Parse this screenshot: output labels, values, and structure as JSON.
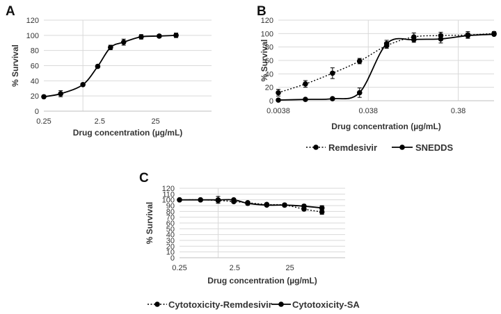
{
  "chart_data": [
    {
      "panel": "A",
      "type": "line",
      "x_scale": "log",
      "xlabel": "Drug concentration (µg/mL)",
      "ylabel": "% Survival",
      "ylim": [
        0,
        120
      ],
      "yticks": [
        0,
        20,
        40,
        60,
        80,
        100,
        120
      ],
      "xticks": [
        {
          "value": 0.25,
          "label": "0.25"
        },
        {
          "value": 2.5,
          "label": "2.5"
        },
        {
          "value": 25,
          "label": "25"
        }
      ],
      "xlim": [
        0.25,
        250
      ],
      "gridlines_x": [
        1.25
      ],
      "legend": [],
      "series": [
        {
          "name": "",
          "style": "solid",
          "x": [
            0.25,
            0.5,
            1.25,
            2.3,
            3.9,
            6.7,
            13.8,
            29,
            58
          ],
          "values": [
            19,
            23,
            35,
            59,
            84,
            91,
            98,
            99,
            100
          ],
          "errors": [
            2,
            4,
            2,
            2,
            3,
            4,
            3,
            2,
            3
          ]
        }
      ]
    },
    {
      "panel": "B",
      "type": "line",
      "x_scale": "log",
      "xlabel": "Drug concentration (µg/mL)",
      "ylabel": "% Survival",
      "ylim": [
        0,
        120
      ],
      "yticks": [
        0,
        20,
        40,
        60,
        80,
        100,
        120
      ],
      "xticks": [
        {
          "value": 0.0038,
          "label": "0.0038"
        },
        {
          "value": 0.038,
          "label": "0.038"
        },
        {
          "value": 0.38,
          "label": "0.38"
        }
      ],
      "xlim": [
        0.0038,
        0.95
      ],
      "gridlines_x": [
        0.038,
        0.38
      ],
      "legend": [
        "Remdesivir",
        "SNEDDS"
      ],
      "legend_position": "bottom",
      "series": [
        {
          "name": "Remdesivir",
          "style": "dotted",
          "x": [
            0.0038,
            0.0076,
            0.0152,
            0.0304,
            0.0608,
            0.122,
            0.243,
            0.486,
            0.95
          ],
          "values": [
            12,
            25,
            41,
            59,
            82,
            95,
            97,
            98,
            100
          ],
          "errors": [
            5,
            5,
            8,
            4,
            4,
            6,
            5,
            5,
            3
          ]
        },
        {
          "name": "SNEDDS",
          "style": "solid",
          "x": [
            0.0038,
            0.0076,
            0.0152,
            0.0304,
            0.0608,
            0.122,
            0.243,
            0.486,
            0.95
          ],
          "values": [
            1,
            2,
            3,
            12,
            85,
            91,
            92,
            97,
            99
          ],
          "errors": [
            1,
            1,
            1,
            7,
            5,
            4,
            6,
            4,
            2
          ]
        }
      ]
    },
    {
      "panel": "C",
      "type": "line",
      "x_scale": "log",
      "xlabel": "Drug concentration (µg/mL)",
      "ylabel": "% Survival",
      "ylim": [
        0,
        120
      ],
      "yticks": [
        0,
        10,
        20,
        30,
        40,
        50,
        60,
        70,
        80,
        90,
        100,
        110,
        120
      ],
      "xticks": [
        {
          "value": 0.25,
          "label": "0.25"
        },
        {
          "value": 2.5,
          "label": "2.5"
        },
        {
          "value": 25,
          "label": "25"
        }
      ],
      "xlim": [
        0.25,
        250
      ],
      "gridlines_x": [
        1.25
      ],
      "legend": [
        "Cytotoxicity-Remdesivir",
        "Cytotoxicity-SA"
      ],
      "legend_position": "bottom",
      "series": [
        {
          "name": "Cytotoxicity-Remdesivir",
          "style": "dotted",
          "x": [
            0.25,
            0.6,
            1.25,
            2.4,
            4.3,
            9.5,
            20,
            45,
            95
          ],
          "values": [
            100,
            100,
            99,
            97,
            95,
            92,
            91,
            84,
            79
          ],
          "errors": [
            2,
            2,
            3,
            2,
            2,
            2,
            2,
            2,
            4
          ]
        },
        {
          "name": "Cytotoxicity-SA",
          "style": "solid",
          "x": [
            0.25,
            0.6,
            1.25,
            2.4,
            4.3,
            9.5,
            20,
            45,
            95
          ],
          "values": [
            100,
            100,
            100,
            100,
            94,
            91,
            91,
            89,
            86
          ],
          "errors": [
            2,
            2,
            6,
            2,
            3,
            2,
            3,
            3,
            4
          ]
        }
      ]
    }
  ]
}
